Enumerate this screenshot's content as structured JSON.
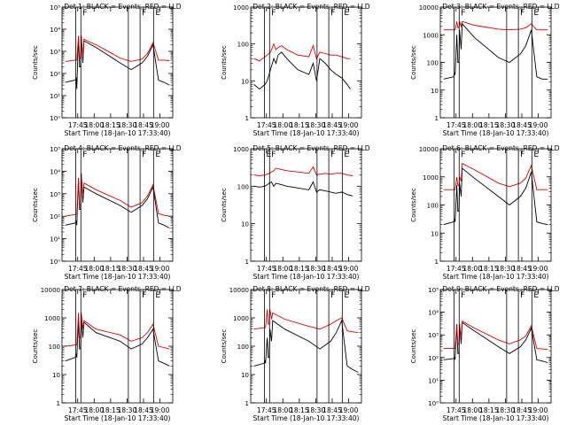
{
  "colors": {
    "events": "#000000",
    "lld": "#dd0000",
    "axis": "#000000",
    "background": "#ffffff"
  },
  "chart_data": [
    {
      "type": "line",
      "title": "Det 1: BLACK = Events, RED = LLD",
      "xlabel": "Start Time (18-Jan-10 17:33:40)",
      "ylabel": "Counts/sec",
      "y_scale": "log",
      "ylim": [
        1,
        100000
      ],
      "y_ticks": [
        "10⁰",
        "10¹",
        "10²",
        "10³",
        "10⁴",
        "10⁵"
      ],
      "x_ticks": [
        "17:45",
        "18:00",
        "18:15",
        "18:30",
        "18:45",
        "19:00"
      ],
      "x": [
        0,
        9,
        10,
        10.5,
        12,
        13,
        14,
        14.5,
        16,
        17,
        28,
        50,
        60,
        70,
        75,
        80,
        85,
        90,
        95
      ],
      "series": [
        {
          "name": "Events",
          "values": [
            40,
            50,
            60,
            20,
            5000,
            200,
            200,
            5000,
            300,
            3000,
            1500,
            300,
            150,
            300,
            600,
            2000,
            50,
            40,
            30
          ]
        },
        {
          "name": "LLD",
          "values": [
            350,
            400,
            400,
            400,
            5000,
            500,
            500,
            5000,
            600,
            3500,
            2000,
            500,
            350,
            450,
            800,
            2500,
            400,
            400,
            380
          ]
        }
      ],
      "markers": [
        {
          "x": 9.5,
          "label": ""
        },
        {
          "x": 14.2,
          "label": "F"
        },
        {
          "x": 57.5,
          "label": ""
        },
        {
          "x": 68.2,
          "label": "F"
        },
        {
          "x": 80.5,
          "label": "E"
        }
      ]
    },
    {
      "type": "line",
      "title": "Det 2: BLACK = Events, RED = LLD",
      "xlabel": "Start Time (18-Jan-10 17:33:40)",
      "ylabel": "Counts/sec",
      "y_scale": "log",
      "ylim": [
        1,
        1000
      ],
      "y_ticks": [
        "1",
        "10",
        "100",
        "1000"
      ],
      "x_ticks": [
        "17:45",
        "18:00",
        "18:15",
        "18:30",
        "18:45",
        "19:00"
      ],
      "x": [
        0,
        5,
        10,
        12,
        15,
        18,
        20,
        22,
        25,
        30,
        40,
        50,
        54,
        57,
        60,
        65,
        70,
        75,
        80,
        85,
        88
      ],
      "series": [
        {
          "name": "Events",
          "values": [
            8,
            6,
            8,
            10,
            20,
            40,
            30,
            50,
            60,
            40,
            20,
            15,
            30,
            10,
            40,
            30,
            20,
            15,
            12,
            8,
            6
          ]
        },
        {
          "name": "LLD",
          "values": [
            40,
            35,
            45,
            50,
            60,
            100,
            70,
            80,
            90,
            70,
            50,
            45,
            90,
            40,
            60,
            55,
            50,
            50,
            45,
            40,
            40
          ]
        }
      ],
      "markers": [
        {
          "x": 9.5,
          "label": ""
        },
        {
          "x": 14.2,
          "label": "F"
        },
        {
          "x": 57.5,
          "label": ""
        },
        {
          "x": 68.2,
          "label": "F"
        },
        {
          "x": 80.5,
          "label": "E"
        }
      ]
    },
    {
      "type": "line",
      "title": "Det 3: BLACK = Events, RED = LLD",
      "xlabel": "Start Time (18-Jan-10 17:33:40)",
      "ylabel": "Counts/sec",
      "y_scale": "log",
      "ylim": [
        1,
        10000
      ],
      "y_ticks": [
        "1",
        "10",
        "100",
        "1000",
        "10000"
      ],
      "x_ticks": [
        "17:45",
        "18:00",
        "18:15",
        "18:30",
        "18:45",
        "19:00"
      ],
      "x": [
        0,
        9,
        10,
        10.5,
        12,
        13,
        14,
        14.5,
        16,
        17,
        28,
        50,
        60,
        70,
        75,
        80,
        85,
        90,
        95
      ],
      "series": [
        {
          "name": "Events",
          "values": [
            25,
            30,
            40,
            35,
            1000,
            100,
            100,
            1500,
            300,
            2500,
            800,
            150,
            100,
            200,
            400,
            1500,
            30,
            25,
            25
          ]
        },
        {
          "name": "LLD",
          "values": [
            1500,
            1500,
            1500,
            1500,
            3000,
            1800,
            1800,
            3000,
            2000,
            3000,
            2200,
            1600,
            1500,
            1600,
            1800,
            2500,
            1500,
            1500,
            1500
          ]
        }
      ],
      "markers": [
        {
          "x": 9.5,
          "label": ""
        },
        {
          "x": 14.2,
          "label": "F"
        },
        {
          "x": 57.5,
          "label": ""
        },
        {
          "x": 68.2,
          "label": "F"
        },
        {
          "x": 80.5,
          "label": "E"
        }
      ]
    },
    {
      "type": "line",
      "title": "Det 4: BLACK = Events, RED = LLD",
      "xlabel": "Start Time (18-Jan-10 17:33:40)",
      "ylabel": "Counts/sec",
      "y_scale": "log",
      "ylim": [
        1,
        100000
      ],
      "y_ticks": [
        "10⁰",
        "10¹",
        "10²",
        "10³",
        "10⁴",
        "10⁵"
      ],
      "x_ticks": [
        "17:45",
        "18:00",
        "18:15",
        "18:30",
        "18:45",
        "19:00"
      ],
      "x": [
        0,
        9,
        10,
        10.5,
        12,
        13,
        14,
        14.5,
        16,
        17,
        28,
        50,
        60,
        70,
        75,
        80,
        85,
        90,
        95
      ],
      "series": [
        {
          "name": "Events",
          "values": [
            40,
            50,
            60,
            40,
            5000,
            200,
            200,
            8000,
            400,
            2000,
            1000,
            300,
            150,
            300,
            600,
            2000,
            50,
            40,
            30
          ]
        },
        {
          "name": "LLD",
          "values": [
            100,
            120,
            120,
            120,
            5000,
            300,
            300,
            8000,
            800,
            3000,
            1500,
            500,
            250,
            400,
            800,
            2500,
            130,
            110,
            100
          ]
        }
      ],
      "markers": [
        {
          "x": 9.5,
          "label": ""
        },
        {
          "x": 14.2,
          "label": "F"
        },
        {
          "x": 57.5,
          "label": ""
        },
        {
          "x": 68.2,
          "label": "F"
        },
        {
          "x": 80.5,
          "label": "E"
        }
      ]
    },
    {
      "type": "line",
      "title": "Det 5: BLACK = Events, RED = LLD",
      "xlabel": "Start Time (18-Jan-10 17:33:40)",
      "ylabel": "Counts/sec",
      "y_scale": "log",
      "ylim": [
        1,
        1000
      ],
      "y_ticks": [
        "1",
        "10",
        "100",
        "1000"
      ],
      "x_ticks": [
        "17:45",
        "18:00",
        "18:15",
        "18:30",
        "18:45",
        "19:00"
      ],
      "x": [
        0,
        5,
        10,
        12,
        14,
        16,
        18,
        20,
        25,
        30,
        40,
        50,
        54,
        57,
        60,
        65,
        70,
        75,
        80,
        85,
        90
      ],
      "series": [
        {
          "name": "Events",
          "values": [
            100,
            95,
            100,
            110,
            120,
            130,
            100,
            120,
            110,
            100,
            90,
            80,
            130,
            70,
            80,
            75,
            70,
            65,
            70,
            60,
            55
          ]
        },
        {
          "name": "LLD",
          "values": [
            200,
            190,
            200,
            210,
            220,
            240,
            260,
            300,
            280,
            260,
            240,
            220,
            330,
            200,
            210,
            220,
            210,
            220,
            220,
            200,
            190
          ]
        }
      ],
      "markers": [
        {
          "x": 9.5,
          "label": "E"
        },
        {
          "x": 14.2,
          "label": "F"
        },
        {
          "x": 57.5,
          "label": ""
        },
        {
          "x": 68.2,
          "label": "F"
        },
        {
          "x": 80.5,
          "label": "E"
        }
      ]
    },
    {
      "type": "line",
      "title": "Det 6: BLACK = Events, RED = LLD",
      "xlabel": "Start Time (18-Jan-10 17:33:40)",
      "ylabel": "Counts/sec",
      "y_scale": "log",
      "ylim": [
        1,
        10000
      ],
      "y_ticks": [
        "1",
        "10",
        "100",
        "1000",
        "10000"
      ],
      "x_ticks": [
        "17:45",
        "18:00",
        "18:15",
        "18:30",
        "18:45",
        "19:00"
      ],
      "x": [
        0,
        9,
        10,
        10.5,
        12,
        13,
        14,
        14.5,
        16,
        17,
        28,
        50,
        60,
        70,
        75,
        80,
        85,
        90,
        95
      ],
      "series": [
        {
          "name": "Events",
          "values": [
            20,
            25,
            30,
            25,
            500,
            60,
            60,
            600,
            200,
            2000,
            900,
            200,
            100,
            200,
            400,
            1500,
            25,
            22,
            20
          ]
        },
        {
          "name": "LLD",
          "values": [
            350,
            350,
            350,
            350,
            1000,
            500,
            500,
            1000,
            700,
            3000,
            1800,
            600,
            450,
            600,
            900,
            2500,
            350,
            350,
            350
          ]
        }
      ],
      "markers": [
        {
          "x": 9.5,
          "label": ""
        },
        {
          "x": 14.2,
          "label": "F"
        },
        {
          "x": 57.5,
          "label": ""
        },
        {
          "x": 68.2,
          "label": "F"
        },
        {
          "x": 80.5,
          "label": "E"
        }
      ]
    },
    {
      "type": "line",
      "title": "Det 7: BLACK = Events, RED = LLD",
      "xlabel": "Start Time (18-Jan-10 17:33:40)",
      "ylabel": "Counts/sec",
      "y_scale": "log",
      "ylim": [
        1,
        10000
      ],
      "y_ticks": [
        "1",
        "10",
        "100",
        "1000",
        "10000"
      ],
      "x_ticks": [
        "17:45",
        "18:00",
        "18:15",
        "18:30",
        "18:45",
        "19:00"
      ],
      "x": [
        0,
        9,
        10,
        10.5,
        12,
        13,
        14,
        14.5,
        16,
        17,
        28,
        50,
        60,
        70,
        75,
        80,
        85,
        90,
        95
      ],
      "series": [
        {
          "name": "Events",
          "values": [
            30,
            40,
            50,
            40,
            800,
            80,
            80,
            1000,
            200,
            700,
            300,
            150,
            80,
            120,
            200,
            400,
            30,
            25,
            20
          ]
        },
        {
          "name": "LLD",
          "values": [
            100,
            110,
            110,
            110,
            1500,
            200,
            200,
            1500,
            400,
            800,
            400,
            250,
            150,
            200,
            300,
            600,
            100,
            90,
            80
          ]
        }
      ],
      "markers": [
        {
          "x": 9.5,
          "label": ""
        },
        {
          "x": 14.2,
          "label": "F"
        },
        {
          "x": 57.5,
          "label": ""
        },
        {
          "x": 68.2,
          "label": "F"
        },
        {
          "x": 80.5,
          "label": "E"
        }
      ]
    },
    {
      "type": "line",
      "title": "Det 8: BLACK = Events, RED = LLD",
      "xlabel": "Start Time (18-Jan-10 17:33:40)",
      "ylabel": "Counts/sec",
      "y_scale": "log",
      "ylim": [
        1,
        10000
      ],
      "y_ticks": [
        "1",
        "10",
        "100",
        "1000",
        "10000"
      ],
      "x_ticks": [
        "17:45",
        "18:00",
        "18:15",
        "18:30",
        "18:45",
        "19:00"
      ],
      "x": [
        0,
        9,
        10,
        10.5,
        12,
        13,
        14,
        14.5,
        16,
        17,
        28,
        50,
        60,
        70,
        75,
        80,
        85,
        90,
        95
      ],
      "series": [
        {
          "name": "Events",
          "values": [
            20,
            25,
            30,
            25,
            200,
            40,
            40,
            400,
            150,
            800,
            400,
            150,
            80,
            150,
            300,
            800,
            20,
            15,
            12
          ]
        },
        {
          "name": "LLD",
          "values": [
            400,
            450,
            450,
            450,
            2000,
            600,
            600,
            2000,
            900,
            1500,
            900,
            500,
            400,
            600,
            800,
            1000,
            350,
            320,
            300
          ]
        }
      ],
      "markers": [
        {
          "x": 9.5,
          "label": ""
        },
        {
          "x": 14.2,
          "label": "F"
        },
        {
          "x": 57.5,
          "label": ""
        },
        {
          "x": 68.2,
          "label": "F"
        },
        {
          "x": 80.5,
          "label": "E"
        }
      ]
    },
    {
      "type": "line",
      "title": "Det 9: BLACK = Events, RED = LLD",
      "xlabel": "Start Time (18-Jan-10 17:33:40)",
      "ylabel": "Counts/sec",
      "y_scale": "log",
      "ylim": [
        1,
        100000
      ],
      "y_ticks": [
        "10⁰",
        "10¹",
        "10²",
        "10³",
        "10⁴",
        "10⁵"
      ],
      "x_ticks": [
        "17:45",
        "18:00",
        "18:15",
        "18:30",
        "18:45",
        "19:00"
      ],
      "x": [
        0,
        9,
        10,
        10.5,
        12,
        13,
        14,
        14.5,
        16,
        17,
        28,
        50,
        60,
        70,
        75,
        80,
        85,
        90,
        95
      ],
      "series": [
        {
          "name": "Events",
          "values": [
            80,
            90,
            100,
            80,
            3000,
            150,
            150,
            3000,
            400,
            3500,
            1500,
            300,
            150,
            300,
            600,
            2000,
            80,
            70,
            60
          ]
        },
        {
          "name": "LLD",
          "values": [
            250,
            250,
            250,
            250,
            3000,
            400,
            400,
            3000,
            800,
            4000,
            2000,
            600,
            400,
            600,
            900,
            2500,
            250,
            240,
            230
          ]
        }
      ],
      "markers": [
        {
          "x": 9.5,
          "label": ""
        },
        {
          "x": 14.2,
          "label": "F"
        },
        {
          "x": 57.5,
          "label": ""
        },
        {
          "x": 68.2,
          "label": "F"
        },
        {
          "x": 80.5,
          "label": "E"
        }
      ]
    }
  ]
}
